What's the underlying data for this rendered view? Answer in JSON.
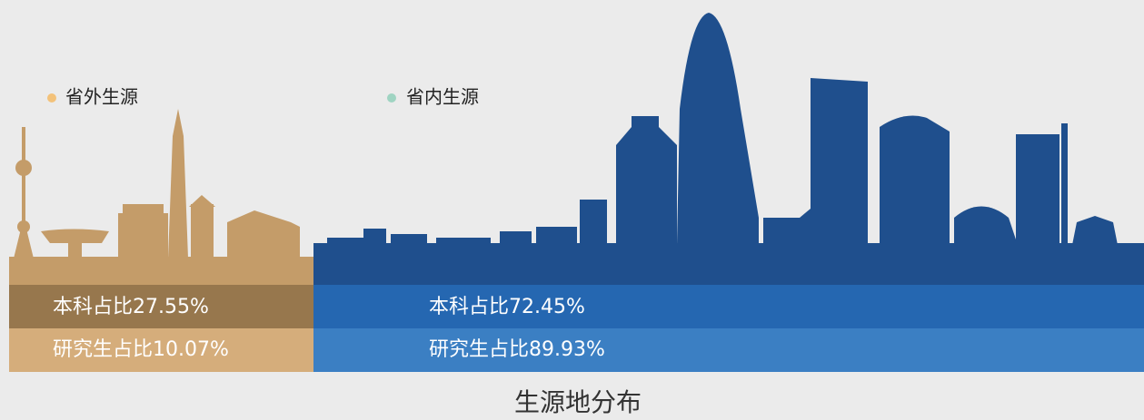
{
  "legend": [
    {
      "label": "省外生源",
      "color": "#f3c27a"
    },
    {
      "label": "省内生源",
      "color": "#9fd4c2"
    }
  ],
  "rows": [
    [
      "本科占比27.55%",
      "本科占比72.45%"
    ],
    [
      "研究生占比10.07%",
      "研究生占比89.93%"
    ]
  ],
  "title": "生源地分布"
}
